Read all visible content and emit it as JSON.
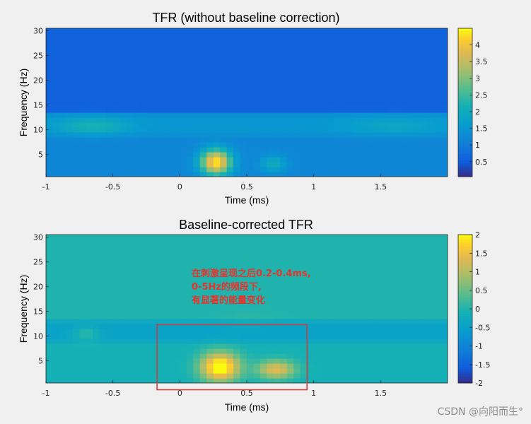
{
  "watermark": "CSDN @向阳而生°",
  "chart_data": [
    {
      "type": "heatmap",
      "title": "TFR (without baseline correction)",
      "xlabel": "Time (ms)",
      "ylabel": "Frequency (Hz)",
      "xlim": [
        -1,
        2
      ],
      "ylim": [
        0.5,
        30.5
      ],
      "xticks": [
        -1,
        -0.5,
        0,
        0.5,
        1,
        1.5
      ],
      "xtick_labels": [
        "-1",
        "-0.5",
        "0",
        "0.5",
        "1",
        "1.5"
      ],
      "yticks": [
        5,
        10,
        15,
        20,
        25,
        30
      ],
      "ytick_labels": [
        "5",
        "10",
        "15",
        "20",
        "25",
        "30"
      ],
      "colorbar": {
        "clim": [
          0.05,
          4.5
        ],
        "ticks": [
          0.5,
          1,
          1.5,
          2,
          2.5,
          3,
          3.5,
          4
        ],
        "tick_labels": [
          "0.5",
          "1",
          "1.5",
          "2",
          "2.5",
          "3",
          "3.5",
          "4"
        ],
        "colormap": "parula"
      },
      "base": {
        "high_freq": 0.6,
        "low_freq": 1.2,
        "alpha_band": 1.5,
        "edge_step_hz": 14
      },
      "blobs": [
        {
          "t": -0.65,
          "f": 10.8,
          "st": 0.18,
          "sf": 1.2,
          "amp": 0.7
        },
        {
          "t": 1.6,
          "f": 10.8,
          "st": 0.25,
          "sf": 1.3,
          "amp": 0.35
        },
        {
          "t": 0.27,
          "f": 3.5,
          "st": 0.08,
          "sf": 1.8,
          "amp": 3.2
        },
        {
          "t": 0.7,
          "f": 3.2,
          "st": 0.07,
          "sf": 1.2,
          "amp": 0.8
        }
      ]
    },
    {
      "type": "heatmap",
      "title": "Baseline-corrected TFR",
      "xlabel": "Time (ms)",
      "ylabel": "Frequency (Hz)",
      "xlim": [
        -1,
        2
      ],
      "ylim": [
        0.5,
        30.5
      ],
      "xticks": [
        -1,
        -0.5,
        0,
        0.5,
        1,
        1.5
      ],
      "xtick_labels": [
        "-1",
        "-0.5",
        "0",
        "0.5",
        "1",
        "1.5"
      ],
      "yticks": [
        5,
        10,
        15,
        20,
        25,
        30
      ],
      "ytick_labels": [
        "5",
        "10",
        "15",
        "20",
        "25",
        "30"
      ],
      "colorbar": {
        "clim": [
          -2,
          2
        ],
        "ticks": [
          -2,
          -1.5,
          -1,
          -0.5,
          0,
          0.5,
          1,
          1.5,
          2
        ],
        "tick_labels": [
          "-2",
          "-1.5",
          "-1",
          "-0.5",
          "0",
          "0.5",
          "1",
          "1.5",
          "2"
        ],
        "colormap": "parula"
      },
      "base": {
        "high_freq": 0.0,
        "low_freq": -0.1,
        "alpha_band": -0.45,
        "edge_step_hz": 14
      },
      "blobs": [
        {
          "t": 0.3,
          "f": 3.8,
          "st": 0.1,
          "sf": 2.0,
          "amp": 2.4
        },
        {
          "t": 0.72,
          "f": 3.3,
          "st": 0.1,
          "sf": 1.3,
          "amp": 1.5
        },
        {
          "t": -0.7,
          "f": 10.5,
          "st": 0.07,
          "sf": 1.0,
          "amp": 0.55
        },
        {
          "t": 0.5,
          "f": 13,
          "st": 0.12,
          "sf": 1.2,
          "amp": 0.1
        }
      ],
      "annotation": {
        "lines": [
          "在刺激呈现之后0.2-0.4ms,",
          "0-5Hz的频段下,",
          "有显著的能量变化"
        ],
        "color": "#e8332a"
      },
      "highlight_box": {
        "x0": -0.17,
        "x1": 0.95,
        "y0": 0.0,
        "y1": 12.3,
        "color": "#d33b3b"
      }
    }
  ]
}
